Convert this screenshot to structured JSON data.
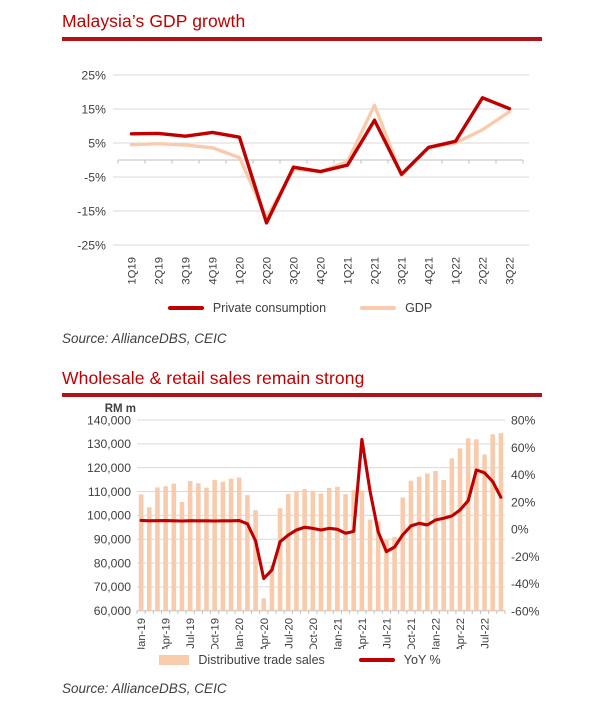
{
  "colors": {
    "accent_red": "#c00000",
    "title_red": "#c00000",
    "rule_red": "#b0121a",
    "peach": "#f8cbad",
    "grid": "#d9d9d9",
    "axis_line": "#bfbfbf",
    "text_gray": "#404040"
  },
  "section1": {
    "title": "Malaysia’s GDP growth",
    "source": "Source: AllianceDBS, CEIC",
    "legend": [
      {
        "label": "Private consumption",
        "swatch": "line",
        "color": "#c00000"
      },
      {
        "label": "GDP",
        "swatch": "line",
        "color": "#f8cbad"
      }
    ]
  },
  "section2": {
    "title": "Wholesale & retail sales remain strong",
    "source": "Source: AllianceDBS, CEIC",
    "legend": [
      {
        "label": "Distributive trade sales",
        "swatch": "rect",
        "color": "#f8cbad"
      },
      {
        "label": "YoY %",
        "swatch": "line",
        "color": "#c00000"
      }
    ]
  },
  "chart_data": [
    {
      "type": "line",
      "title": "Malaysia's GDP growth",
      "categories": [
        "1Q19",
        "2Q19",
        "3Q19",
        "4Q19",
        "1Q20",
        "2Q20",
        "3Q20",
        "4Q20",
        "1Q21",
        "2Q21",
        "3Q21",
        "4Q21",
        "1Q22",
        "2Q22",
        "3Q22"
      ],
      "series": [
        {
          "name": "GDP",
          "color": "#f8cbad",
          "values": [
            4.5,
            4.8,
            4.4,
            3.6,
            0.7,
            -17.1,
            -2.7,
            -3.4,
            -0.5,
            16.1,
            -4.5,
            3.6,
            5.0,
            8.9,
            14.2
          ]
        },
        {
          "name": "Private consumption",
          "color": "#c00000",
          "values": [
            7.7,
            7.8,
            7.0,
            8.1,
            6.7,
            -18.5,
            -2.1,
            -3.4,
            -1.5,
            11.7,
            -4.2,
            3.7,
            5.5,
            18.3,
            15.1
          ]
        }
      ],
      "ylim": [
        -25,
        25
      ],
      "yticks": [
        25,
        15,
        5,
        -5,
        -15,
        -25
      ],
      "ytick_suffix": "%",
      "grid": true,
      "legend_position": "bottom"
    },
    {
      "type": "bar+line",
      "title": "Wholesale & retail sales remain strong",
      "y_left_label": "RM m",
      "categories": [
        "Jan-19",
        "Feb-19",
        "Mar-19",
        "Apr-19",
        "May-19",
        "Jun-19",
        "Jul-19",
        "Aug-19",
        "Sep-19",
        "Oct-19",
        "Nov-19",
        "Dec-19",
        "Jan-20",
        "Feb-20",
        "Mar-20",
        "Apr-20",
        "May-20",
        "Jun-20",
        "Jul-20",
        "Aug-20",
        "Sep-20",
        "Oct-20",
        "Nov-20",
        "Dec-20",
        "Jan-21",
        "Feb-21",
        "Mar-21",
        "Apr-21",
        "May-21",
        "Jun-21",
        "Jul-21",
        "Aug-21",
        "Sep-21",
        "Oct-21",
        "Nov-21",
        "Dec-21",
        "Jan-22",
        "Feb-22",
        "Mar-22",
        "Apr-22",
        "May-22",
        "Jun-22",
        "Jul-22",
        "Aug-22",
        "Sep-22"
      ],
      "xtick_every": 3,
      "bar_series": {
        "name": "Distributive trade sales",
        "color": "#f8cbad",
        "axis": "left",
        "values": [
          108800,
          103400,
          111700,
          112200,
          113300,
          105600,
          114400,
          113500,
          111600,
          114900,
          114100,
          115400,
          115900,
          108500,
          102200,
          65200,
          79200,
          103000,
          109000,
          110300,
          111000,
          110300,
          109200,
          111500,
          112000,
          108900,
          110600,
          110500,
          98200,
          97500,
          89700,
          91000,
          107500,
          114500,
          116200,
          117600,
          118600,
          114800,
          123900,
          128100,
          132300,
          131900,
          125500,
          134000,
          134500
        ]
      },
      "line_series": {
        "name": "YoY %",
        "color": "#c00000",
        "axis": "right",
        "values": [
          6.5,
          6.2,
          6.3,
          6.4,
          6.2,
          6.1,
          6.3,
          6.2,
          6.2,
          6.1,
          6.2,
          6.2,
          6.4,
          4.0,
          -8.5,
          -36.2,
          -29.8,
          -9.1,
          -4.2,
          -0.5,
          1.5,
          0.7,
          -0.5,
          0.7,
          0.0,
          -2.9,
          -1.5,
          66.0,
          28.0,
          -2.0,
          -16.4,
          -13.0,
          -4.0,
          2.5,
          4.4,
          3.2,
          6.8,
          8.1,
          9.8,
          14.2,
          21.0,
          43.6,
          41.5,
          35.0,
          23.5
        ]
      },
      "y_left": {
        "min": 60000,
        "max": 140000,
        "step": 10000
      },
      "y_right": {
        "min": -60,
        "max": 80,
        "step": 20,
        "suffix": "%"
      },
      "grid": true,
      "legend_position": "bottom"
    }
  ]
}
